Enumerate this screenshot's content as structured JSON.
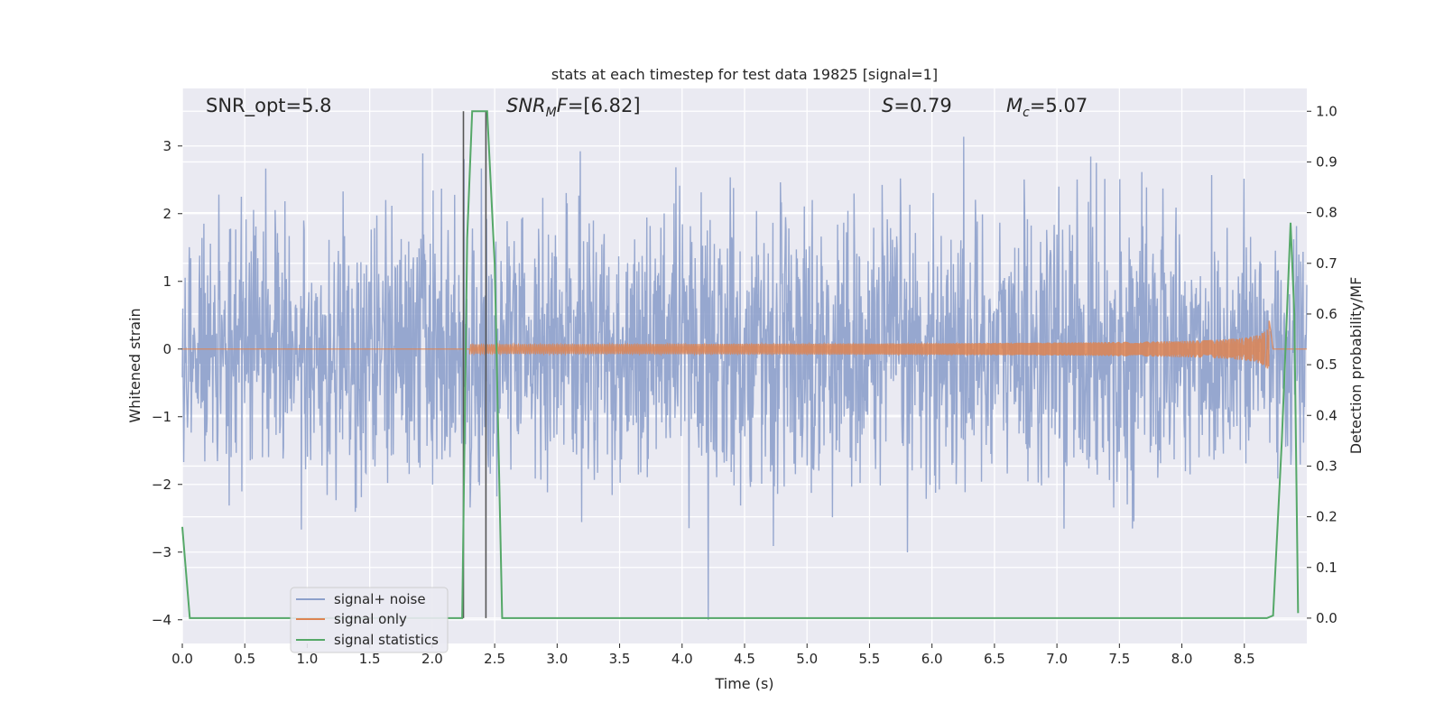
{
  "chart_data": {
    "type": "line",
    "title": "stats at each timestep for test data 19825 [signal=1]",
    "xlabel": "Time (s)",
    "ylabel": "Whitened strain",
    "y2label": "Detection probability/MF",
    "xlim": [
      0.0,
      9.0
    ],
    "ylim": [
      -4.35,
      3.85
    ],
    "y2lim": [
      -0.05,
      1.045
    ],
    "xticks": [
      "0.0",
      "0.5",
      "1.0",
      "1.5",
      "2.0",
      "2.5",
      "3.0",
      "3.5",
      "4.0",
      "4.5",
      "5.0",
      "5.5",
      "6.0",
      "6.5",
      "7.0",
      "7.5",
      "8.0",
      "8.5"
    ],
    "yticks": [
      "−4",
      "−3",
      "−2",
      "−1",
      "0",
      "1",
      "2",
      "3"
    ],
    "y2ticks": [
      "0.0",
      "0.1",
      "0.2",
      "0.3",
      "0.4",
      "0.5",
      "0.6",
      "0.7",
      "0.8",
      "0.9",
      "1.0"
    ],
    "grid": true,
    "legend_position": "lower-left",
    "annotations": {
      "snr_opt": "SNR_opt=5.8",
      "snr_mf": "=[6.82]",
      "s": "=0.79",
      "mc": "=5.07"
    },
    "vertical_lines": [
      2.25,
      2.43
    ],
    "series": [
      {
        "name": "signal+ noise",
        "color": "#8da0cb",
        "description": "whitened noisy strain, unit-variance noise with peaks up to about 3.5",
        "noise_std": 1.0,
        "samples": 2400
      },
      {
        "name": "signal only",
        "color": "#dd8452",
        "description": "inspiral chirp, amplitude growing to about 0.5 at merger near 8.7 s",
        "t_start": 2.3,
        "t_merge": 8.7,
        "peak_amplitude": 0.5
      },
      {
        "name": "signal statistics",
        "color": "#55a868",
        "axis": "right",
        "x": [
          0.0,
          0.06,
          0.12,
          2.24,
          2.28,
          2.32,
          2.38,
          2.44,
          2.5,
          2.56,
          2.6,
          8.68,
          8.73,
          8.8,
          8.87,
          8.9,
          8.93
        ],
        "values": [
          0.18,
          0.0,
          0.0,
          0.0,
          0.75,
          1.0,
          1.0,
          1.0,
          0.7,
          0.0,
          0.0,
          0.0,
          0.005,
          0.35,
          0.78,
          0.6,
          0.01
        ]
      }
    ]
  }
}
